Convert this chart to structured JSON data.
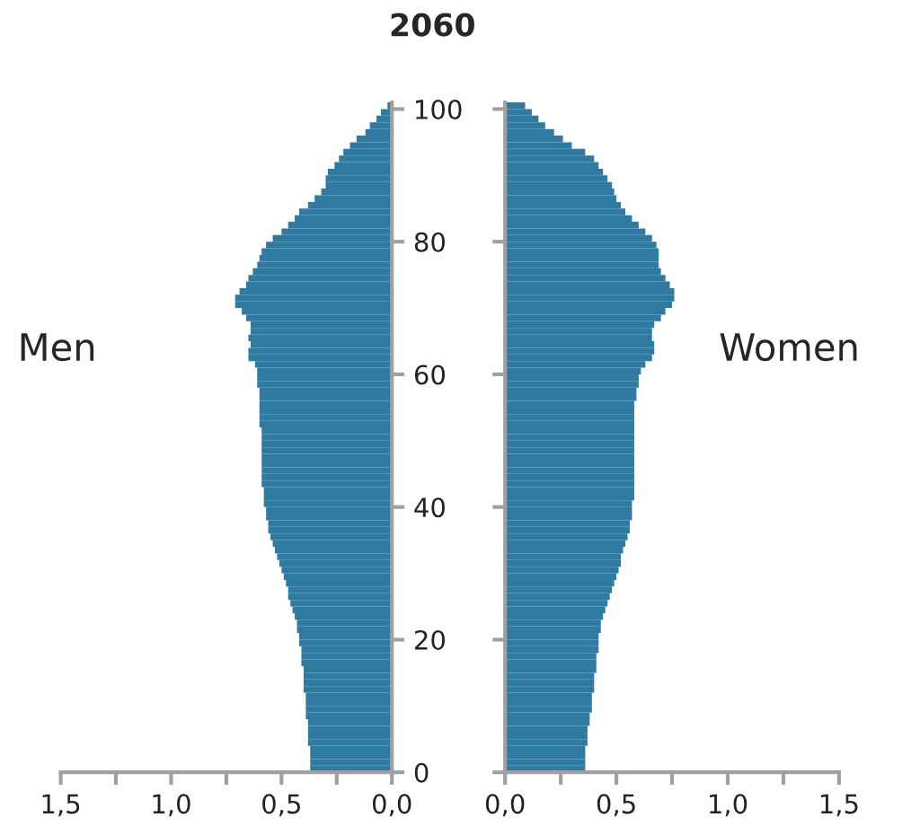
{
  "chart_data": [
    {
      "type": "bar",
      "orientation": "horizontal",
      "title": "2060",
      "x": [
        0,
        1,
        2,
        3,
        4,
        5,
        6,
        7,
        8,
        9,
        10,
        11,
        12,
        13,
        14,
        15,
        16,
        17,
        18,
        19,
        20,
        21,
        22,
        23,
        24,
        25,
        26,
        27,
        28,
        29,
        30,
        31,
        32,
        33,
        34,
        35,
        36,
        37,
        38,
        39,
        40,
        41,
        42,
        43,
        44,
        45,
        46,
        47,
        48,
        49,
        50,
        51,
        52,
        53,
        54,
        55,
        56,
        57,
        58,
        59,
        60,
        61,
        62,
        63,
        64,
        65,
        66,
        67,
        68,
        69,
        70,
        71,
        72,
        73,
        74,
        75,
        76,
        77,
        78,
        79,
        80,
        81,
        82,
        83,
        84,
        85,
        86,
        87,
        88,
        89,
        90,
        91,
        92,
        93,
        94,
        95,
        96,
        97,
        98,
        99,
        100
      ],
      "series": [
        {
          "name": "Men",
          "color": "#2e7aa0",
          "values": [
            0.37,
            0.37,
            0.37,
            0.37,
            0.38,
            0.38,
            0.38,
            0.38,
            0.39,
            0.39,
            0.39,
            0.39,
            0.4,
            0.4,
            0.4,
            0.4,
            0.41,
            0.41,
            0.41,
            0.42,
            0.42,
            0.43,
            0.43,
            0.44,
            0.45,
            0.46,
            0.47,
            0.47,
            0.48,
            0.49,
            0.5,
            0.51,
            0.52,
            0.53,
            0.54,
            0.55,
            0.56,
            0.56,
            0.57,
            0.57,
            0.58,
            0.58,
            0.58,
            0.59,
            0.59,
            0.59,
            0.59,
            0.59,
            0.59,
            0.59,
            0.59,
            0.59,
            0.6,
            0.6,
            0.6,
            0.6,
            0.6,
            0.6,
            0.61,
            0.61,
            0.61,
            0.62,
            0.65,
            0.65,
            0.64,
            0.65,
            0.64,
            0.64,
            0.66,
            0.68,
            0.71,
            0.71,
            0.69,
            0.66,
            0.65,
            0.63,
            0.61,
            0.6,
            0.59,
            0.57,
            0.54,
            0.5,
            0.47,
            0.44,
            0.42,
            0.38,
            0.35,
            0.32,
            0.3,
            0.3,
            0.29,
            0.26,
            0.24,
            0.22,
            0.19,
            0.16,
            0.12,
            0.1,
            0.07,
            0.05,
            0.02
          ]
        }
      ],
      "xlim": [
        1.5,
        0
      ],
      "xticks": [
        {
          "value": 1.5,
          "label": "1,5"
        },
        {
          "value": 1.25,
          "label": null
        },
        {
          "value": 1.0,
          "label": "1,0"
        },
        {
          "value": 0.75,
          "label": null
        },
        {
          "value": 0.5,
          "label": "0,5"
        },
        {
          "value": 0.25,
          "label": null
        },
        {
          "value": 0,
          "label": "0,0"
        }
      ],
      "ylim": [
        0,
        101
      ],
      "yticks": [
        0,
        20,
        40,
        60,
        80,
        100
      ],
      "grid": false,
      "legend": false
    },
    {
      "type": "bar",
      "orientation": "horizontal",
      "x": [
        0,
        1,
        2,
        3,
        4,
        5,
        6,
        7,
        8,
        9,
        10,
        11,
        12,
        13,
        14,
        15,
        16,
        17,
        18,
        19,
        20,
        21,
        22,
        23,
        24,
        25,
        26,
        27,
        28,
        29,
        30,
        31,
        32,
        33,
        34,
        35,
        36,
        37,
        38,
        39,
        40,
        41,
        42,
        43,
        44,
        45,
        46,
        47,
        48,
        49,
        50,
        51,
        52,
        53,
        54,
        55,
        56,
        57,
        58,
        59,
        60,
        61,
        62,
        63,
        64,
        65,
        66,
        67,
        68,
        69,
        70,
        71,
        72,
        73,
        74,
        75,
        76,
        77,
        78,
        79,
        80,
        81,
        82,
        83,
        84,
        85,
        86,
        87,
        88,
        89,
        90,
        91,
        92,
        93,
        94,
        95,
        96,
        97,
        98,
        99,
        100
      ],
      "series": [
        {
          "name": "Women",
          "color": "#2e7aa0",
          "values": [
            0.36,
            0.36,
            0.36,
            0.36,
            0.37,
            0.37,
            0.37,
            0.38,
            0.38,
            0.39,
            0.39,
            0.39,
            0.4,
            0.4,
            0.4,
            0.41,
            0.41,
            0.41,
            0.42,
            0.42,
            0.42,
            0.43,
            0.43,
            0.44,
            0.45,
            0.46,
            0.47,
            0.48,
            0.49,
            0.5,
            0.51,
            0.52,
            0.52,
            0.53,
            0.54,
            0.55,
            0.56,
            0.56,
            0.57,
            0.57,
            0.57,
            0.58,
            0.58,
            0.58,
            0.58,
            0.58,
            0.58,
            0.58,
            0.58,
            0.58,
            0.58,
            0.58,
            0.58,
            0.58,
            0.58,
            0.58,
            0.59,
            0.59,
            0.6,
            0.6,
            0.61,
            0.63,
            0.66,
            0.67,
            0.67,
            0.66,
            0.66,
            0.67,
            0.7,
            0.72,
            0.75,
            0.76,
            0.76,
            0.74,
            0.72,
            0.7,
            0.69,
            0.69,
            0.69,
            0.68,
            0.66,
            0.63,
            0.6,
            0.57,
            0.54,
            0.52,
            0.5,
            0.49,
            0.48,
            0.46,
            0.44,
            0.42,
            0.4,
            0.36,
            0.3,
            0.26,
            0.22,
            0.18,
            0.15,
            0.12,
            0.09
          ]
        }
      ],
      "xlim": [
        0,
        1.5
      ],
      "xticks": [
        {
          "value": 0,
          "label": "0,0"
        },
        {
          "value": 0.25,
          "label": null
        },
        {
          "value": 0.5,
          "label": "0,5"
        },
        {
          "value": 0.75,
          "label": null
        },
        {
          "value": 1.0,
          "label": "1,0"
        },
        {
          "value": 1.25,
          "label": null
        },
        {
          "value": 1.5,
          "label": "1,5"
        }
      ],
      "ylim": [
        0,
        101
      ],
      "yticks": [
        0,
        20,
        40,
        60,
        80,
        100
      ],
      "tick_labels": "x",
      "grid": false,
      "legend": false
    }
  ]
}
